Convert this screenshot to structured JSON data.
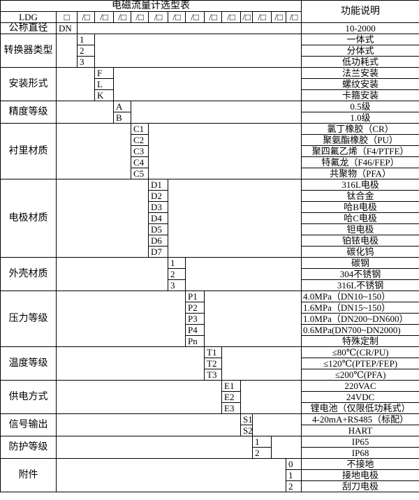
{
  "title": "电磁流量计选型表",
  "function_header": "功能说明",
  "model_row": [
    "LDG",
    "□",
    "/□",
    "/□",
    "/□",
    "/□",
    "/□",
    "/□",
    "/□",
    "/□",
    "/□",
    "/□",
    "/□",
    "/□",
    "/□"
  ],
  "nominal": {
    "label": "公称直径",
    "code": "DN",
    "desc": "10-2000"
  },
  "groups": [
    {
      "label": "转换器类型",
      "col": 2,
      "rows": [
        {
          "code": "1",
          "desc": "一体式"
        },
        {
          "code": "2",
          "desc": "分体式"
        },
        {
          "code": "3",
          "desc": "低功耗式"
        }
      ]
    },
    {
      "label": "安装形式",
      "col": 3,
      "rows": [
        {
          "code": "F",
          "desc": "法兰安装"
        },
        {
          "code": "L",
          "desc": "螺纹安装"
        },
        {
          "code": "K",
          "desc": "卡箍安装"
        }
      ]
    },
    {
      "label": "精度等级",
      "col": 4,
      "rows": [
        {
          "code": "A",
          "desc": "0.5级"
        },
        {
          "code": "B",
          "desc": "1.0级"
        }
      ]
    },
    {
      "label": "衬里材质",
      "col": 5,
      "rows": [
        {
          "code": "C1",
          "desc": "氯丁橡胶（CR）"
        },
        {
          "code": "C2",
          "desc": "聚氨酯橡胶（PU）"
        },
        {
          "code": "C3",
          "desc": "聚四氟乙烯（F4/PTFE）"
        },
        {
          "code": "C4",
          "desc": "特氟龙（F46/FEP）"
        },
        {
          "code": "C5",
          "desc": "共聚物（PFA）"
        }
      ]
    },
    {
      "label": "电极材质",
      "col": 6,
      "rows": [
        {
          "code": "D1",
          "desc": "316L电极"
        },
        {
          "code": "D2",
          "desc": "钛合金"
        },
        {
          "code": "D3",
          "desc": "哈B电极"
        },
        {
          "code": "D4",
          "desc": "哈C电极"
        },
        {
          "code": "D5",
          "desc": "钽电极"
        },
        {
          "code": "D6",
          "desc": "铂铱电极"
        },
        {
          "code": "D7",
          "desc": "碳化钨"
        }
      ]
    },
    {
      "label": "外壳材质",
      "col": 7,
      "rows": [
        {
          "code": "1",
          "desc": "碳钢"
        },
        {
          "code": "2",
          "desc": "304不锈钢"
        },
        {
          "code": "3",
          "desc": "316L不锈钢"
        }
      ]
    },
    {
      "label": "压力等级",
      "col": 8,
      "rows": [
        {
          "code": "P1",
          "desc": "4.0MPa（DN10~150）",
          "left": true
        },
        {
          "code": "P2",
          "desc": "1.6MPa（DN15~150）",
          "left": true
        },
        {
          "code": "P3",
          "desc": "1.0MPa（DN200~DN600）",
          "left": true
        },
        {
          "code": "P4",
          "desc": "0.6MPa(DN700~DN2000)",
          "left": true
        },
        {
          "code": "Pn",
          "desc": "特殊定制"
        }
      ]
    },
    {
      "label": "温度等级",
      "col": 9,
      "rows": [
        {
          "code": "T1",
          "desc": "≤80℃(CR/PU)"
        },
        {
          "code": "T2",
          "desc": "≤120℃(PTEP/FEP)"
        },
        {
          "code": "T3",
          "desc": "≤200℃(PFA)"
        }
      ]
    },
    {
      "label": "供电方式",
      "col": 10,
      "rows": [
        {
          "code": "E1",
          "desc": "220VAC"
        },
        {
          "code": "E2",
          "desc": "24VDC"
        },
        {
          "code": "E3",
          "desc": "锂电池（仅限低功耗式）"
        }
      ]
    },
    {
      "label": "信号输出",
      "col": 11,
      "rows": [
        {
          "code": "S1",
          "desc": "4-20mA+RS485（标配）"
        },
        {
          "code": "S2",
          "desc": "HART"
        }
      ]
    },
    {
      "label": "防护等级",
      "col": 12,
      "rows": [
        {
          "code": "1",
          "desc": "IP65"
        },
        {
          "code": "2",
          "desc": "IP68"
        }
      ]
    },
    {
      "label": "附件",
      "col": 14,
      "rows": [
        {
          "code": "0",
          "desc": "不接地"
        },
        {
          "code": "1",
          "desc": "接地电极"
        },
        {
          "code": "2",
          "desc": "刮刀电极"
        }
      ]
    }
  ]
}
